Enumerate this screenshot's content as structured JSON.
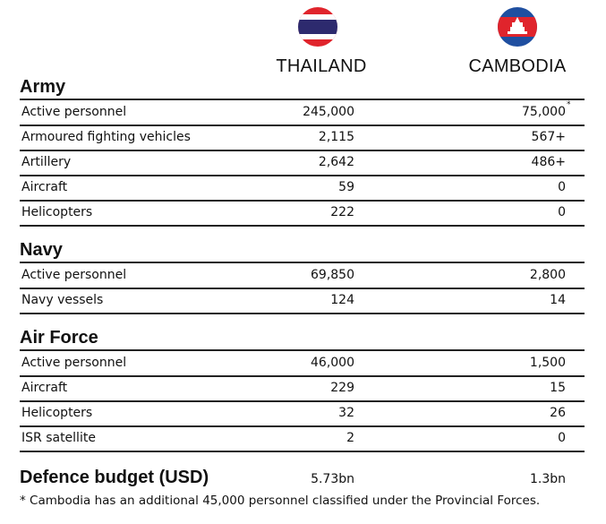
{
  "header": {
    "columns": [
      "THAILAND",
      "CAMBODIA"
    ]
  },
  "sections": [
    {
      "title": "Army",
      "rows": [
        {
          "label": "Active personnel",
          "thailand": "245,000",
          "cambodia": "75,000",
          "note": "*"
        },
        {
          "label": "Armoured fighting vehicles",
          "thailand": "2,115",
          "cambodia": "567+"
        },
        {
          "label": "Artillery",
          "thailand": "2,642",
          "cambodia": "486+"
        },
        {
          "label": "Aircraft",
          "thailand": "59",
          "cambodia": "0"
        },
        {
          "label": "Helicopters",
          "thailand": "222",
          "cambodia": "0"
        }
      ]
    },
    {
      "title": "Navy",
      "rows": [
        {
          "label": "Active personnel",
          "thailand": "69,850",
          "cambodia": "2,800"
        },
        {
          "label": "Navy vessels",
          "thailand": "124",
          "cambodia": "14"
        }
      ]
    },
    {
      "title": "Air Force",
      "rows": [
        {
          "label": "Active personnel",
          "thailand": "46,000",
          "cambodia": "1,500"
        },
        {
          "label": "Aircraft",
          "thailand": "229",
          "cambodia": "15"
        },
        {
          "label": "Helicopters",
          "thailand": "32",
          "cambodia": "26"
        },
        {
          "label": "ISR satellite",
          "thailand": "2",
          "cambodia": "0"
        }
      ]
    }
  ],
  "budget": {
    "label": "Defence budget (USD)",
    "thailand": "5.73bn",
    "cambodia": "1.3bn"
  },
  "footnote": "* Cambodia has an additional 45,000 personnel classified under the Provincial Forces."
}
